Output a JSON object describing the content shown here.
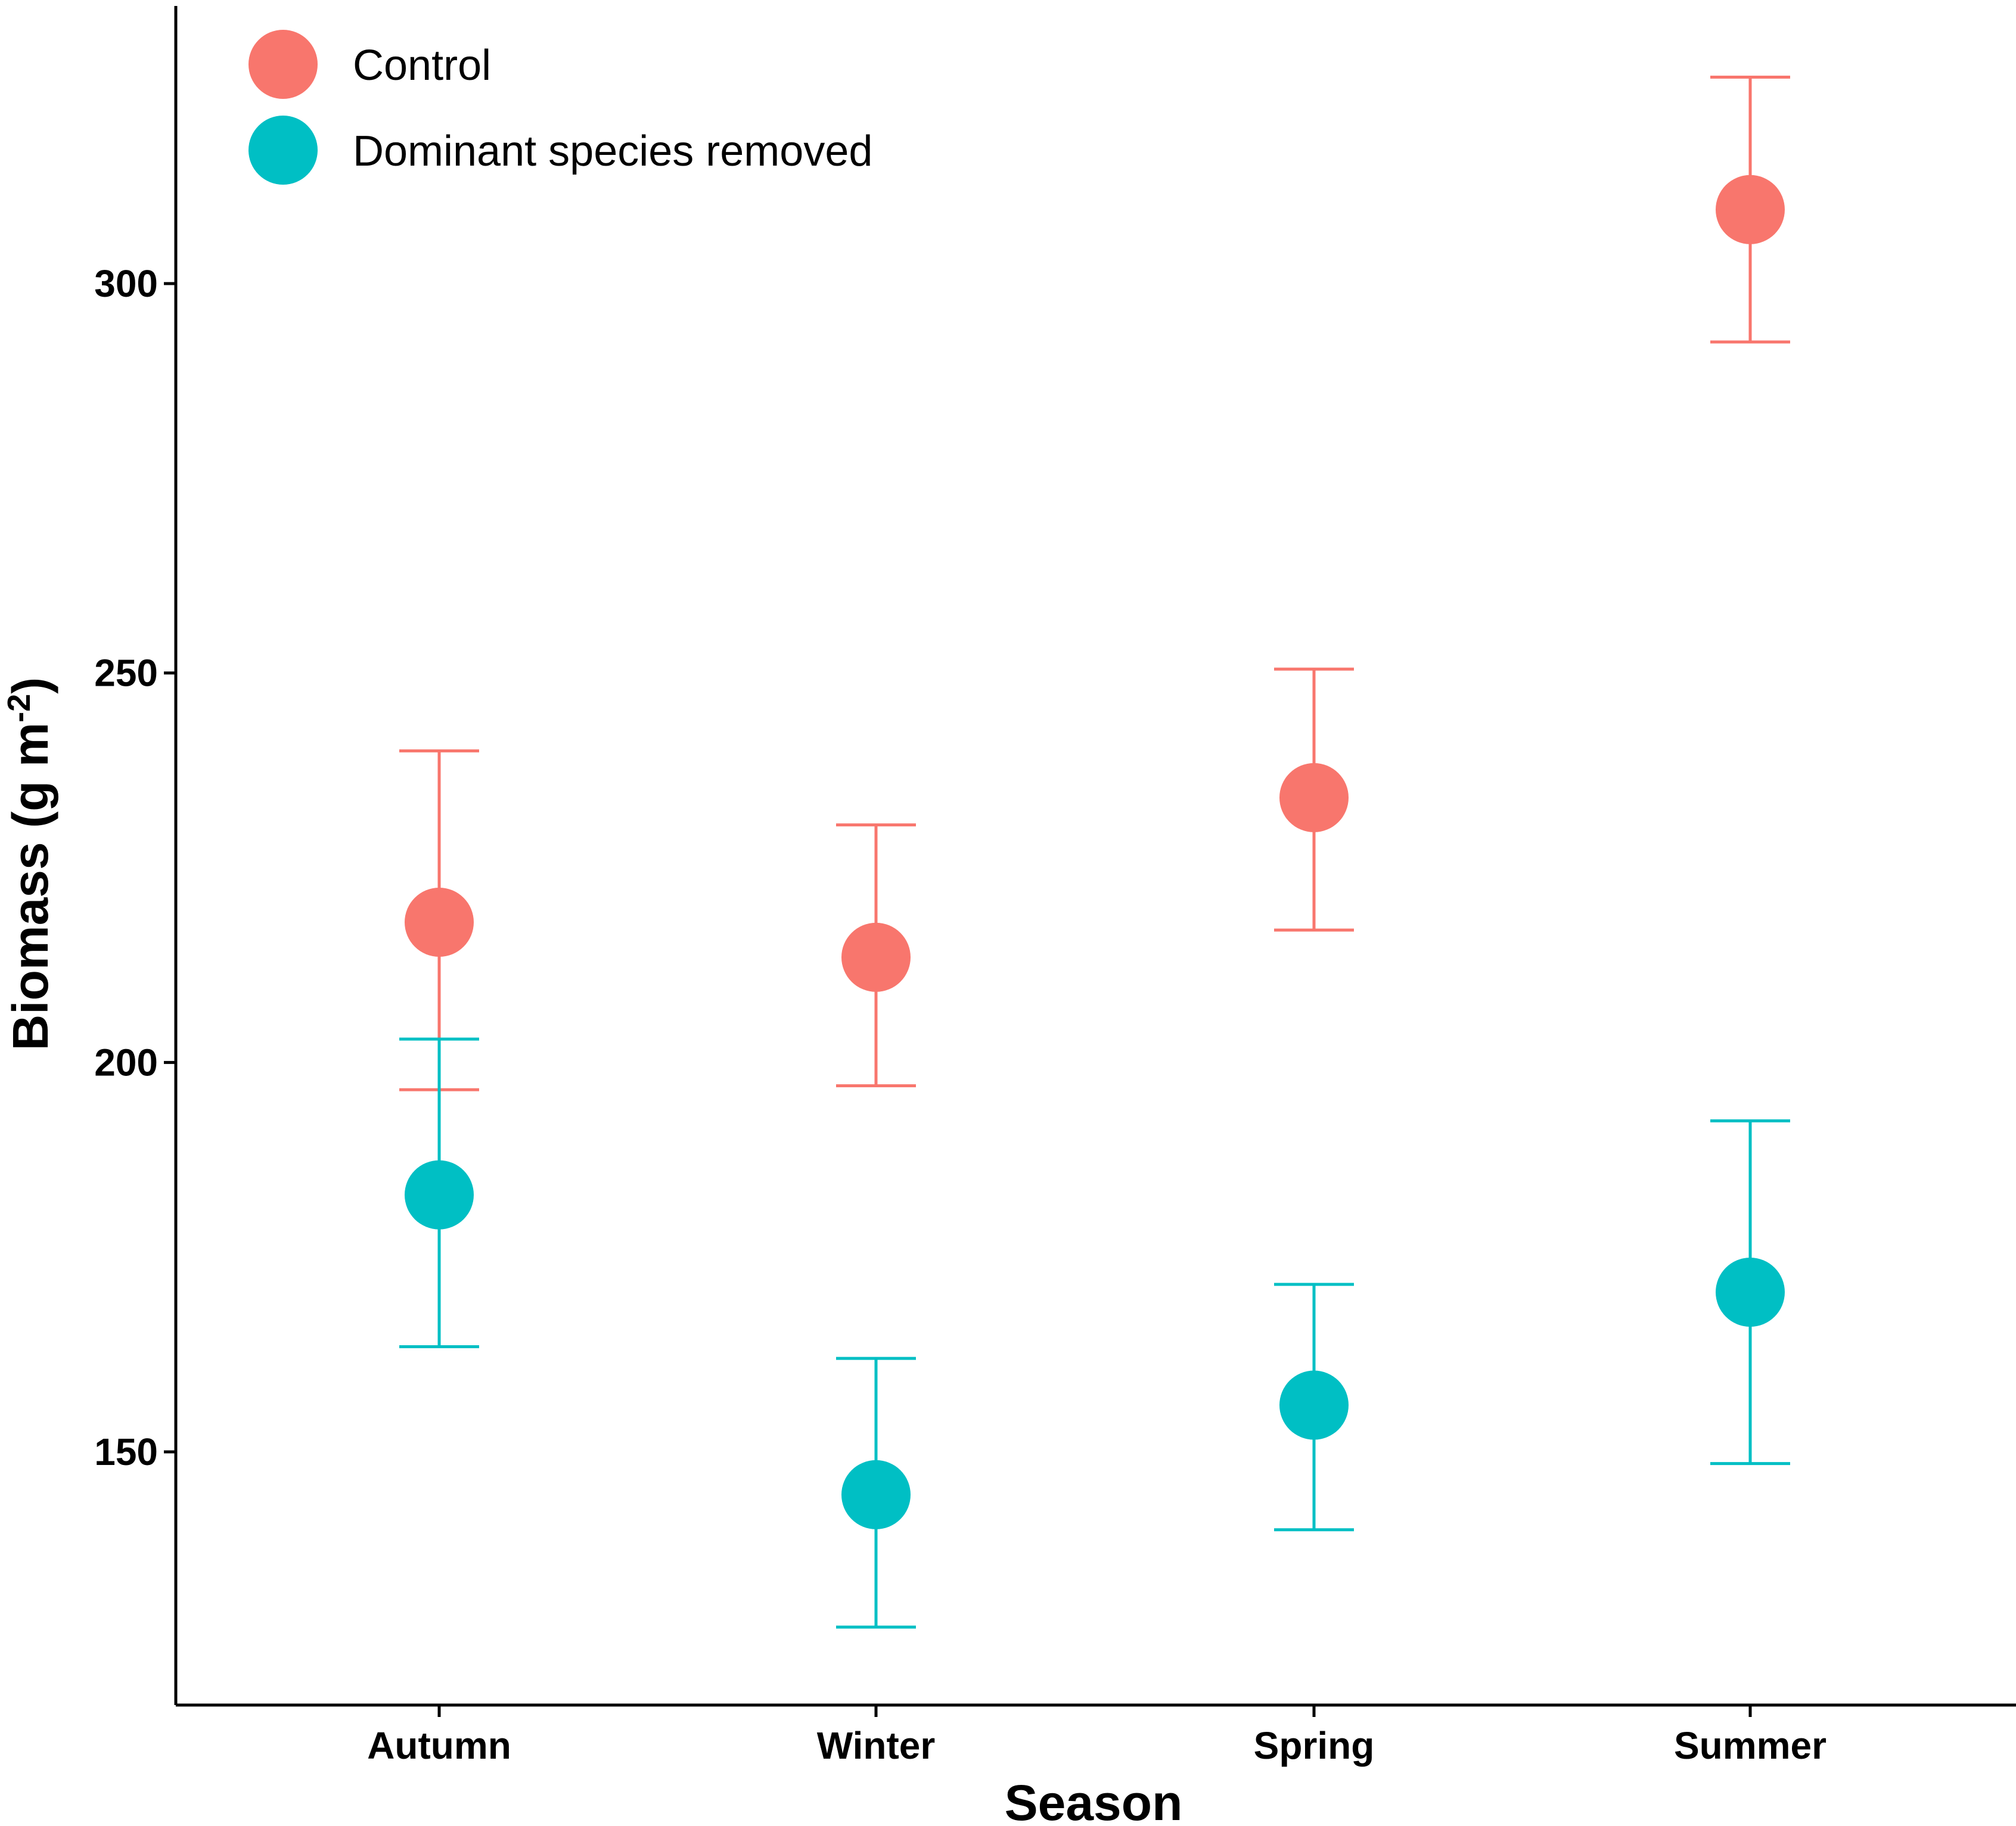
{
  "chart_data": {
    "type": "scatter",
    "title": "",
    "xlabel": "Season",
    "ylabel": "Biomass (g m",
    "ylabel_superscript": "-2",
    "ylabel_close": ")",
    "categories": [
      "Autumn",
      "Winter",
      "Spring",
      "Summer"
    ],
    "ylim": [
      117,
      336
    ],
    "yticks": [
      150,
      200,
      250,
      300
    ],
    "legend_position": "top-left",
    "grid": false,
    "series": [
      {
        "name": "Control",
        "color": "#F8766D",
        "values": [
          218,
          213.5,
          234,
          309.5
        ],
        "upper": [
          240,
          230.5,
          250.5,
          326.5
        ],
        "lower": [
          196.5,
          197,
          217,
          292.5
        ]
      },
      {
        "name": "Dominant species removed",
        "color": "#00BFC4",
        "values": [
          183,
          144.5,
          156,
          170.5
        ],
        "upper": [
          203,
          162,
          171.5,
          192.5
        ],
        "lower": [
          163.5,
          127.5,
          140,
          148.5
        ]
      }
    ]
  }
}
